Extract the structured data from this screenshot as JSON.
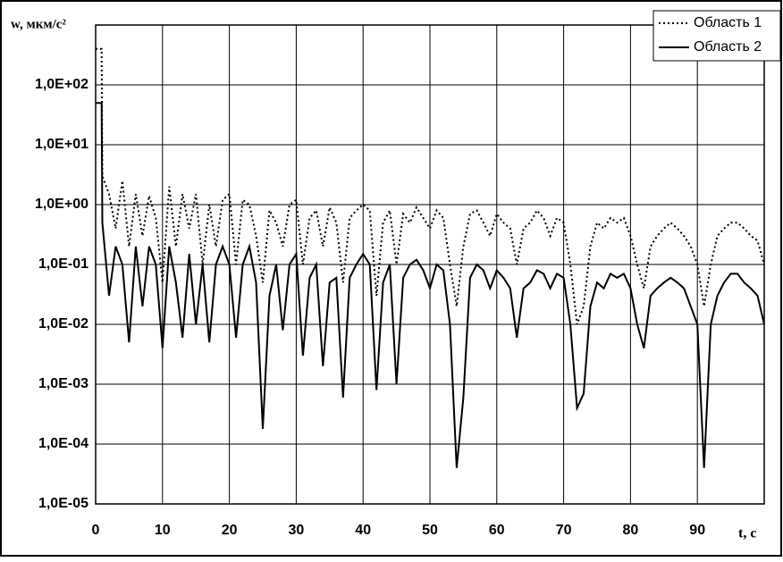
{
  "chart_data": {
    "type": "line",
    "y_label": "w, мкм/с²",
    "x_label": "t, c",
    "log_y": true,
    "grid": true,
    "legend": "upper right",
    "x": [
      0,
      0.9,
      1,
      2,
      3,
      4,
      5,
      6,
      7,
      8,
      9,
      10,
      11,
      12,
      13,
      14,
      15,
      16,
      17,
      18,
      19,
      20,
      21,
      22,
      23,
      24,
      25,
      26,
      27,
      28,
      29,
      30,
      31,
      32,
      33,
      34,
      35,
      36,
      37,
      38,
      39,
      40,
      41,
      42,
      43,
      44,
      45,
      46,
      47,
      48,
      49,
      50,
      51,
      52,
      53,
      54,
      55,
      56,
      57,
      58,
      59,
      60,
      61,
      62,
      63,
      64,
      65,
      66,
      67,
      68,
      69,
      70,
      71,
      72,
      73,
      74,
      75,
      76,
      77,
      78,
      79,
      80,
      81,
      82,
      83,
      84,
      85,
      86,
      87,
      88,
      89,
      90,
      91,
      92,
      93,
      94,
      95,
      96,
      97,
      98,
      99,
      100
    ],
    "series": [
      {
        "name": "Область 1",
        "color": "#000000",
        "dash": "2,3",
        "values": [
          400,
          400,
          3,
          1.5,
          0.4,
          2.5,
          0.2,
          1.5,
          0.3,
          1.4,
          0.6,
          0.05,
          2,
          0.2,
          1.5,
          0.4,
          1.5,
          0.1,
          1,
          0.2,
          1.2,
          1.5,
          0.1,
          1.2,
          1,
          0.3,
          0.05,
          0.8,
          0.5,
          0.2,
          1,
          1.2,
          0.1,
          0.6,
          0.8,
          0.2,
          0.9,
          0.5,
          0.05,
          0.6,
          0.8,
          1,
          0.8,
          0.03,
          0.5,
          0.8,
          0.1,
          0.7,
          0.5,
          0.9,
          0.6,
          0.4,
          0.8,
          0.6,
          0.1,
          0.02,
          0.2,
          0.7,
          0.8,
          0.5,
          0.3,
          0.7,
          0.5,
          0.4,
          0.1,
          0.4,
          0.5,
          0.8,
          0.6,
          0.3,
          0.6,
          0.5,
          0.1,
          0.01,
          0.02,
          0.2,
          0.5,
          0.4,
          0.6,
          0.5,
          0.6,
          0.3,
          0.1,
          0.04,
          0.2,
          0.3,
          0.4,
          0.5,
          0.4,
          0.3,
          0.2,
          0.1,
          0.02,
          0.1,
          0.3,
          0.4,
          0.5,
          0.5,
          0.4,
          0.3,
          0.25,
          0.1
        ]
      },
      {
        "name": "Область 2",
        "color": "#000000",
        "dash": "none",
        "values": [
          50,
          50,
          0.5,
          0.03,
          0.2,
          0.1,
          0.005,
          0.2,
          0.02,
          0.2,
          0.1,
          0.004,
          0.2,
          0.05,
          0.006,
          0.15,
          0.01,
          0.1,
          0.005,
          0.1,
          0.2,
          0.1,
          0.006,
          0.1,
          0.2,
          0.05,
          0.00018,
          0.03,
          0.1,
          0.008,
          0.1,
          0.15,
          0.003,
          0.06,
          0.1,
          0.002,
          0.05,
          0.06,
          0.0006,
          0.06,
          0.1,
          0.15,
          0.1,
          0.0008,
          0.05,
          0.1,
          0.001,
          0.06,
          0.1,
          0.12,
          0.08,
          0.04,
          0.1,
          0.08,
          0.01,
          4e-05,
          0.0006,
          0.06,
          0.1,
          0.08,
          0.04,
          0.08,
          0.06,
          0.04,
          0.006,
          0.04,
          0.05,
          0.08,
          0.07,
          0.04,
          0.07,
          0.06,
          0.01,
          0.0004,
          0.0007,
          0.02,
          0.05,
          0.04,
          0.07,
          0.06,
          0.07,
          0.04,
          0.01,
          0.004,
          0.03,
          0.04,
          0.05,
          0.06,
          0.05,
          0.04,
          0.02,
          0.01,
          4e-05,
          0.01,
          0.03,
          0.05,
          0.07,
          0.07,
          0.05,
          0.04,
          0.03,
          0.01
        ]
      }
    ],
    "xlim": [
      0,
      100
    ],
    "xticks": [
      0,
      10,
      20,
      30,
      40,
      50,
      60,
      70,
      80,
      90
    ],
    "ylim": [
      1e-05,
      1000
    ],
    "yticks": [
      {
        "value": 1e-05,
        "label": "1,0E-05"
      },
      {
        "value": 0.0001,
        "label": "1,0E-04"
      },
      {
        "value": 0.001,
        "label": "1,0E-03"
      },
      {
        "value": 0.01,
        "label": "1,0E-02"
      },
      {
        "value": 0.1,
        "label": "1,0E-01"
      },
      {
        "value": 1,
        "label": "1,0E+00"
      },
      {
        "value": 10,
        "label": "1,0E+01"
      },
      {
        "value": 100,
        "label": "1,0E+02"
      }
    ]
  }
}
